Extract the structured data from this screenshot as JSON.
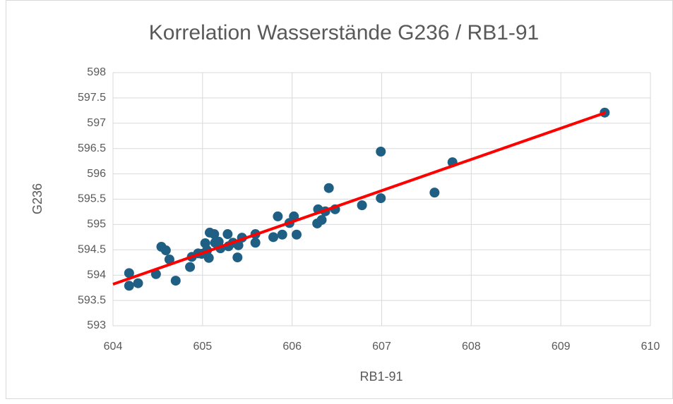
{
  "chart_data": {
    "type": "scatter",
    "title": "Korrelation Wasserstände G236 / RB1-91",
    "x_label": "RB1-91",
    "y_label": "G236",
    "xlim": [
      604,
      610
    ],
    "xticks": [
      604,
      605,
      606,
      607,
      608,
      609,
      610
    ],
    "ylim": [
      593,
      598
    ],
    "yticks": [
      593,
      593.5,
      594,
      594.5,
      595,
      595.5,
      596,
      596.5,
      597,
      597.5,
      598
    ],
    "grid": true,
    "series": [
      {
        "color": "#1f5f84",
        "x": [
          604.18,
          604.18,
          604.28,
          604.48,
          604.54,
          604.59,
          604.63,
          604.7,
          604.86,
          604.88,
          604.95,
          604.99,
          605.03,
          605.05,
          605.08,
          605.07,
          605.13,
          605.14,
          605.18,
          605.2,
          605.28,
          605.29,
          605.34,
          605.4,
          605.39,
          605.44,
          605.59,
          605.59,
          605.79,
          605.84,
          605.89,
          605.97,
          606.02,
          606.05,
          606.29,
          606.28,
          606.33,
          606.37,
          606.41,
          606.48,
          606.78,
          606.99,
          606.99,
          607.59,
          607.79,
          609.49
        ],
        "values": [
          594.04,
          593.79,
          593.84,
          594.02,
          594.56,
          594.49,
          594.31,
          593.89,
          594.16,
          594.36,
          594.43,
          594.42,
          594.63,
          594.49,
          594.84,
          594.34,
          594.81,
          594.64,
          594.66,
          594.53,
          594.81,
          594.57,
          594.64,
          594.59,
          594.35,
          594.74,
          594.81,
          594.64,
          594.75,
          595.16,
          594.8,
          595.03,
          595.16,
          594.8,
          595.3,
          595.02,
          595.09,
          595.26,
          595.72,
          595.3,
          595.38,
          596.44,
          595.52,
          595.63,
          596.23,
          597.21
        ]
      }
    ],
    "trendline": {
      "color": "#ff0000",
      "x": [
        604,
        609.5
      ],
      "values": [
        593.82,
        597.21
      ]
    }
  }
}
